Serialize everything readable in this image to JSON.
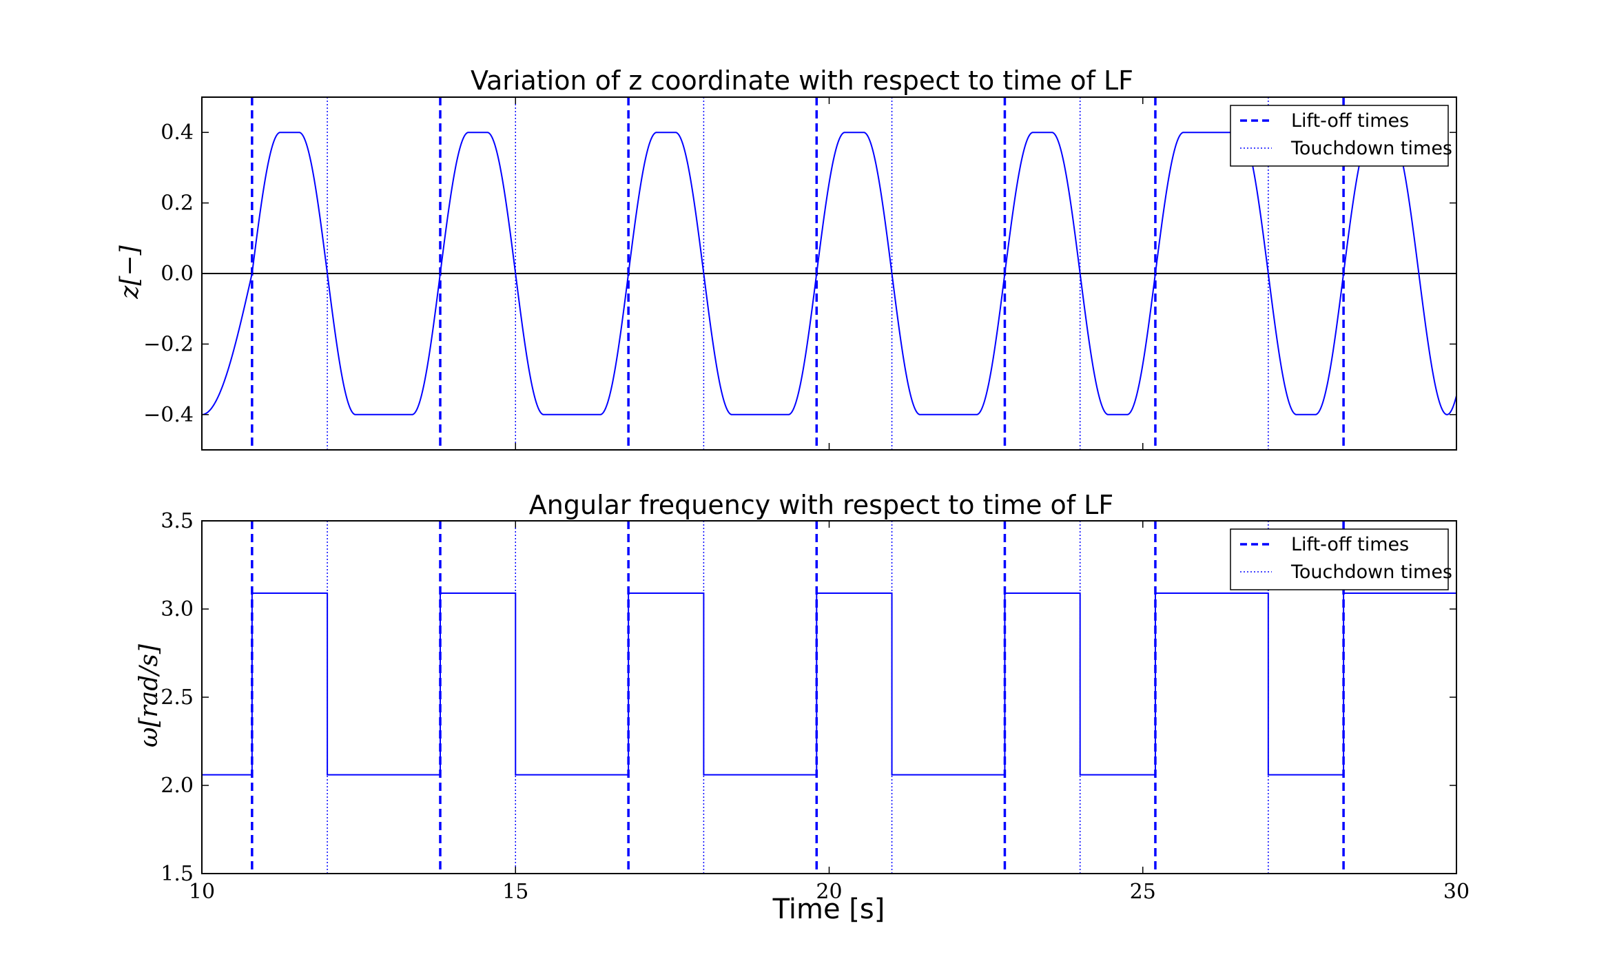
{
  "chart_data": [
    {
      "type": "line",
      "title": "Variation of z coordinate with respect to time of LF",
      "xlabel": "",
      "ylabel": "z[−]",
      "xlim": [
        10,
        30
      ],
      "ylim": [
        -0.5,
        0.5
      ],
      "yticks": [
        0.4,
        0.2,
        0.0,
        -0.2,
        -0.4
      ],
      "ytick_labels": [
        "0.4",
        "0.2",
        "0.0",
        "−0.2",
        "−0.4"
      ],
      "grid": false,
      "zero_line": true,
      "series_color": "#0000ff",
      "amplitude": 0.4,
      "liftoff_times": [
        10.8,
        13.8,
        16.8,
        19.8,
        22.8,
        25.2,
        28.2
      ],
      "touchdown_times": [
        12.0,
        15.0,
        18.0,
        21.0,
        24.0,
        27.0
      ],
      "legend": {
        "location": "upper right",
        "entries": [
          {
            "label": "Lift-off times",
            "style": "dashed",
            "color": "#0000ff"
          },
          {
            "label": "Touchdown times",
            "style": "dotted",
            "color": "#0000ff"
          }
        ]
      }
    },
    {
      "type": "line",
      "title": "Angular frequency with respect to time of LF",
      "xlabel": "Time [s]",
      "ylabel": "ω[rad/s]",
      "xlim": [
        10,
        30
      ],
      "ylim": [
        1.5,
        3.5
      ],
      "xticks": [
        10,
        15,
        20,
        25,
        30
      ],
      "xtick_labels": [
        "10",
        "15",
        "20",
        "25",
        "30"
      ],
      "yticks": [
        3.5,
        3.0,
        2.5,
        2.0,
        1.5
      ],
      "ytick_labels": [
        "3.5",
        "3.0",
        "2.5",
        "2.0",
        "1.5"
      ],
      "grid": false,
      "series_color": "#0000ff",
      "omega_stance": 2.06,
      "omega_swing": 3.09,
      "liftoff_times": [
        10.8,
        13.8,
        16.8,
        19.8,
        22.8,
        25.2,
        28.2
      ],
      "touchdown_times": [
        12.0,
        15.0,
        18.0,
        21.0,
        24.0,
        27.0
      ],
      "legend": {
        "location": "upper right",
        "entries": [
          {
            "label": "Lift-off times",
            "style": "dashed",
            "color": "#0000ff"
          },
          {
            "label": "Touchdown times",
            "style": "dotted",
            "color": "#0000ff"
          }
        ]
      }
    }
  ]
}
